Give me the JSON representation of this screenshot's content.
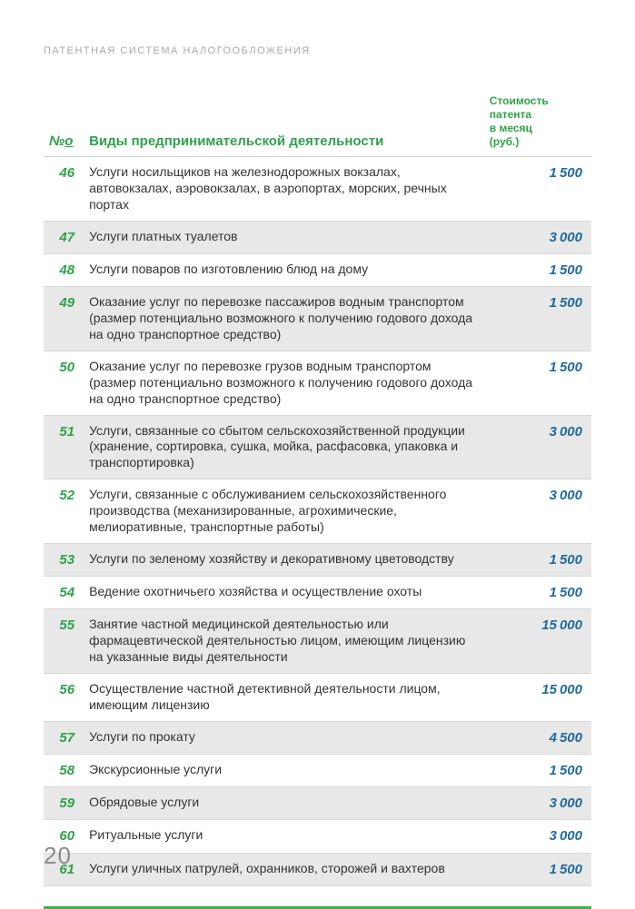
{
  "section_title": "ПАТЕНТНАЯ СИСТЕМА НАЛОГООБЛОЖЕНИЯ",
  "page_number": "20",
  "header": {
    "num_label_symbol": "№",
    "num_label_underline": "о",
    "desc_label": "Виды предпринимательской деятельности",
    "cost_line1": "Стоимость",
    "cost_line2": "патента",
    "cost_line3": "в месяц",
    "cost_line4": "(руб.)"
  },
  "rows": [
    {
      "num": "46",
      "desc": "Услуги носильщиков на железнодорожных вокзалах, автовокзалах, аэровокзалах, в аэропортах, морских, речных портах",
      "cost_a": "1",
      "cost_b": "500",
      "shade": false
    },
    {
      "num": "47",
      "desc": "Услуги платных туалетов",
      "cost_a": "3",
      "cost_b": "000",
      "shade": true
    },
    {
      "num": "48",
      "desc": "Услуги поваров по изготовлению блюд на дому",
      "cost_a": "1",
      "cost_b": "500",
      "shade": false
    },
    {
      "num": "49",
      "desc": "Оказание услуг по перевозке пассажиров водным транспортом (размер потенциально возможного к получению годового дохода на одно транспортное средство)",
      "cost_a": "1",
      "cost_b": "500",
      "shade": true
    },
    {
      "num": "50",
      "desc": "Оказание услуг по перевозке грузов водным транспортом (размер потенциально возможного к получению годового дохода на одно транспортное средство)",
      "cost_a": "1",
      "cost_b": "500",
      "shade": false
    },
    {
      "num": "51",
      "desc": "Услуги, связанные со сбытом сельскохозяйственной продукции (хранение, сортировка, сушка, мойка, расфасовка, упаковка и транспортировка)",
      "cost_a": "3",
      "cost_b": "000",
      "shade": true
    },
    {
      "num": "52",
      "desc": "Услуги, связанные с обслуживанием сельскохозяйственного производства (механизированные, агрохимические, мелиоративные, транспортные работы)",
      "cost_a": "3",
      "cost_b": "000",
      "shade": false
    },
    {
      "num": "53",
      "desc": "Услуги по зеленому хозяйству и декоративному цветоводству",
      "cost_a": "1",
      "cost_b": "500",
      "shade": true
    },
    {
      "num": "54",
      "desc": "Ведение охотничьего хозяйства и осуществление охоты",
      "cost_a": "1",
      "cost_b": "500",
      "shade": false
    },
    {
      "num": "55",
      "desc": "Занятие частной медицинской деятельностью или фармацевтической деятельностью лицом, имеющим лицензию на указанные виды деятельности",
      "cost_a": "15",
      "cost_b": "000",
      "shade": true
    },
    {
      "num": "56",
      "desc": "Осуществление частной детективной деятельности лицом, имеющим лицензию",
      "cost_a": "15",
      "cost_b": "000",
      "shade": false
    },
    {
      "num": "57",
      "desc": "Услуги по прокату",
      "cost_a": "4",
      "cost_b": "500",
      "shade": true
    },
    {
      "num": "58",
      "desc": "Экскурсионные услуги",
      "cost_a": "1",
      "cost_b": "500",
      "shade": false
    },
    {
      "num": "59",
      "desc": "Обрядовые услуги",
      "cost_a": "3",
      "cost_b": "000",
      "shade": true
    },
    {
      "num": "60",
      "desc": "Ритуальные услуги",
      "cost_a": "3",
      "cost_b": "000",
      "shade": false
    },
    {
      "num": "61",
      "desc": "Услуги уличных патрулей, охранников, сторожей и вахтеров",
      "cost_a": "1",
      "cost_b": "500",
      "shade": true
    }
  ]
}
